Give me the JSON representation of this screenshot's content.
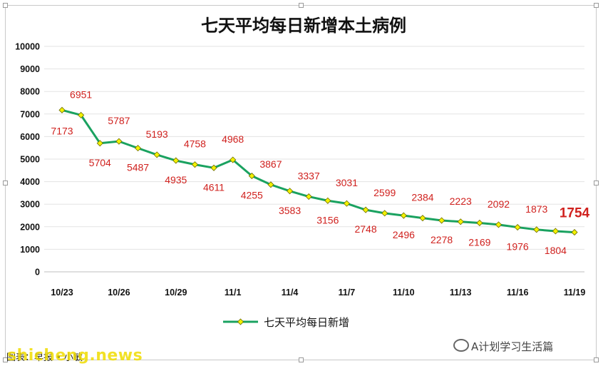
{
  "chart_data": {
    "type": "line",
    "title": "七天平均每日新增本土病例",
    "xlabel": "",
    "ylabel": "",
    "ylim": [
      0,
      10000
    ],
    "yticks": [
      0,
      1000,
      2000,
      3000,
      4000,
      5000,
      6000,
      7000,
      8000,
      9000,
      10000
    ],
    "x": [
      "10/23",
      "10/24",
      "10/25",
      "10/26",
      "10/27",
      "10/28",
      "10/29",
      "10/30",
      "10/31",
      "11/1",
      "11/2",
      "11/3",
      "11/4",
      "11/5",
      "11/6",
      "11/7",
      "11/8",
      "11/9",
      "11/10",
      "11/11",
      "11/12",
      "11/13",
      "11/14",
      "11/15",
      "11/16",
      "11/17",
      "11/18",
      "11/19"
    ],
    "xtick_labels": [
      "10/23",
      "10/26",
      "10/29",
      "11/1",
      "11/4",
      "11/7",
      "11/10",
      "11/13",
      "11/16",
      "11/19"
    ],
    "series": [
      {
        "name": "七天平均每日新增",
        "color": "#1aa260",
        "marker_color": "#f2f200",
        "values": [
          7173,
          6951,
          5704,
          5787,
          5487,
          5193,
          4935,
          4758,
          4611,
          4968,
          4255,
          3867,
          3583,
          3337,
          3156,
          3031,
          2748,
          2599,
          2496,
          2384,
          2278,
          2223,
          2169,
          2092,
          1976,
          1873,
          1804,
          1754
        ]
      }
    ],
    "grid": true,
    "legend_position": "bottom",
    "label_color": "#d0211e"
  },
  "footer": {
    "caption": "图表：早报 • 小敏",
    "brand": "A计划学习生活篇",
    "watermark": "shicheng.news"
  }
}
